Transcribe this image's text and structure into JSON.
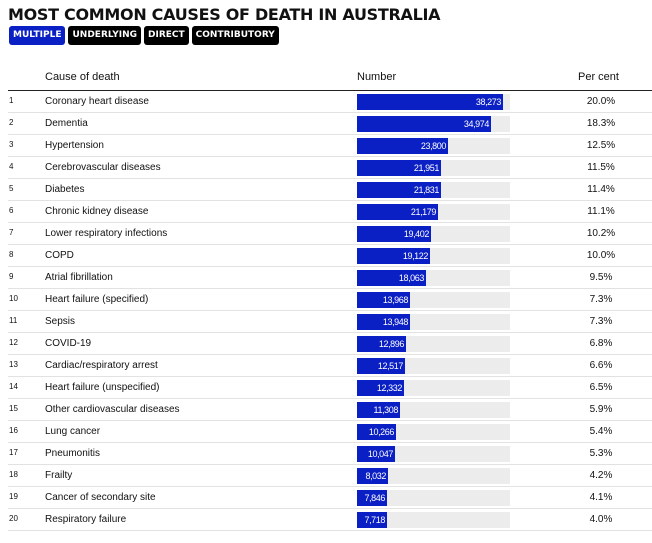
{
  "title": "MOST COMMON CAUSES OF DEATH IN AUSTRALIA",
  "tabs": [
    {
      "label": "MULTIPLE",
      "active": true
    },
    {
      "label": "UNDERLYING",
      "active": false
    },
    {
      "label": "DIRECT",
      "active": false
    },
    {
      "label": "CONTRIBUTORY",
      "active": false
    }
  ],
  "colors": {
    "accent": "#0a1fc4",
    "track": "#ececec",
    "tab": "#000000"
  },
  "chart_data": {
    "type": "bar",
    "orientation": "horizontal",
    "title": "MOST COMMON CAUSES OF DEATH IN AUSTRALIA",
    "columns": {
      "cause": "Cause of death",
      "number": "Number",
      "percent": "Per cent"
    },
    "xlim": [
      0,
      40000
    ],
    "rows": [
      {
        "rank": "1",
        "cause": "Coronary heart disease",
        "value": 38273,
        "label": "38,273",
        "percent": "20.0%"
      },
      {
        "rank": "2",
        "cause": "Dementia",
        "value": 34974,
        "label": "34,974",
        "percent": "18.3%"
      },
      {
        "rank": "3",
        "cause": "Hypertension",
        "value": 23800,
        "label": "23,800",
        "percent": "12.5%"
      },
      {
        "rank": "4",
        "cause": "Cerebrovascular diseases",
        "value": 21951,
        "label": "21,951",
        "percent": "11.5%"
      },
      {
        "rank": "5",
        "cause": "Diabetes",
        "value": 21831,
        "label": "21,831",
        "percent": "11.4%"
      },
      {
        "rank": "6",
        "cause": "Chronic kidney disease",
        "value": 21179,
        "label": "21,179",
        "percent": "11.1%"
      },
      {
        "rank": "7",
        "cause": "Lower respiratory infections",
        "value": 19402,
        "label": "19,402",
        "percent": "10.2%"
      },
      {
        "rank": "8",
        "cause": "COPD",
        "value": 19122,
        "label": "19,122",
        "percent": "10.0%"
      },
      {
        "rank": "9",
        "cause": "Atrial fibrillation",
        "value": 18063,
        "label": "18,063",
        "percent": "9.5%"
      },
      {
        "rank": "10",
        "cause": "Heart failure (specified)",
        "value": 13968,
        "label": "13,968",
        "percent": "7.3%"
      },
      {
        "rank": "11",
        "cause": "Sepsis",
        "value": 13948,
        "label": "13,948",
        "percent": "7.3%"
      },
      {
        "rank": "12",
        "cause": "COVID-19",
        "value": 12896,
        "label": "12,896",
        "percent": "6.8%"
      },
      {
        "rank": "13",
        "cause": "Cardiac/respiratory arrest",
        "value": 12517,
        "label": "12,517",
        "percent": "6.6%"
      },
      {
        "rank": "14",
        "cause": "Heart failure (unspecified)",
        "value": 12332,
        "label": "12,332",
        "percent": "6.5%"
      },
      {
        "rank": "15",
        "cause": "Other cardiovascular diseases",
        "value": 11308,
        "label": "11,308",
        "percent": "5.9%"
      },
      {
        "rank": "16",
        "cause": "Lung cancer",
        "value": 10266,
        "label": "10,266",
        "percent": "5.4%"
      },
      {
        "rank": "17",
        "cause": "Pneumonitis",
        "value": 10047,
        "label": "10,047",
        "percent": "5.3%"
      },
      {
        "rank": "18",
        "cause": "Frailty",
        "value": 8032,
        "label": "8,032",
        "percent": "4.2%"
      },
      {
        "rank": "19",
        "cause": "Cancer of secondary site",
        "value": 7846,
        "label": "7,846",
        "percent": "4.1%"
      },
      {
        "rank": "20",
        "cause": "Respiratory failure",
        "value": 7718,
        "label": "7,718",
        "percent": "4.0%"
      }
    ]
  }
}
